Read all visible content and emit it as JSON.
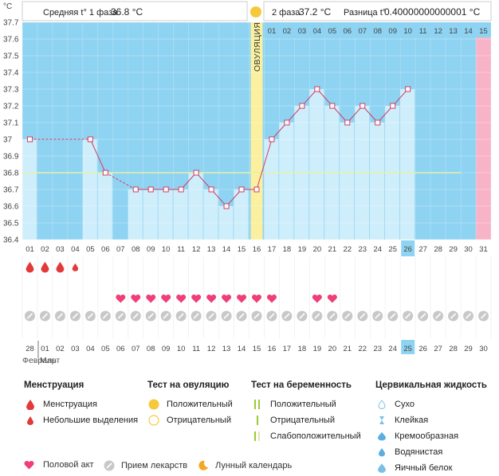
{
  "header": {
    "unit": "°C",
    "phase1_label": "Средняя t° 1 фаза",
    "phase1_value": "36.8 °C",
    "phase2_label": "2 фаза",
    "phase2_value": "37.2 °C",
    "diff_label": "Разница t°",
    "diff_value": "0.40000000000001 °C"
  },
  "chart_data": {
    "type": "line",
    "ylim": [
      36.4,
      37.7
    ],
    "yticks": [
      "36.4",
      "36.5",
      "36.6",
      "36.7",
      "36.8",
      "36.9",
      "37",
      "37.1",
      "37.2",
      "37.3",
      "37.4",
      "37.5",
      "37.6",
      "37.7"
    ],
    "cycle_days": [
      "01",
      "02",
      "03",
      "04",
      "05",
      "06",
      "07",
      "08",
      "09",
      "10",
      "11",
      "12",
      "13",
      "14",
      "15",
      "16",
      "17",
      "18",
      "19",
      "20",
      "21",
      "22",
      "23",
      "24",
      "25",
      "26",
      "27",
      "28",
      "29",
      "30",
      "31"
    ],
    "temperatures": [
      37.0,
      null,
      null,
      null,
      37.0,
      36.8,
      null,
      36.7,
      36.7,
      36.7,
      36.7,
      36.8,
      36.7,
      36.6,
      36.7,
      36.7,
      37.0,
      37.1,
      37.2,
      37.3,
      37.2,
      37.1,
      37.2,
      37.1,
      37.2,
      37.3,
      null,
      null,
      null,
      null,
      null
    ],
    "coverline": 36.8,
    "ovulation_day": "16",
    "ovulation_label": "ОВУЛЯЦИЯ",
    "phase2_day_labels": [
      "01",
      "02",
      "03",
      "04",
      "05",
      "06",
      "07",
      "08",
      "09",
      "10",
      "11",
      "12",
      "13",
      "14",
      "15"
    ],
    "current_day": "26",
    "menstruation_days": [
      "01",
      "02",
      "03",
      "04"
    ],
    "intercourse_days": [
      "07",
      "08",
      "09",
      "10",
      "11",
      "12",
      "13",
      "14",
      "15",
      "16",
      "17",
      "20",
      "21"
    ],
    "medication_days": [
      "01",
      "02",
      "03",
      "04",
      "05",
      "06",
      "07",
      "08",
      "09",
      "10",
      "11",
      "12",
      "13",
      "14",
      "15",
      "16",
      "17",
      "18",
      "19",
      "20",
      "21",
      "22",
      "23",
      "24",
      "25",
      "26",
      "27",
      "28",
      "29",
      "30",
      "31"
    ],
    "dates": [
      "28",
      "01",
      "02",
      "03",
      "04",
      "05",
      "06",
      "07",
      "08",
      "09",
      "10",
      "11",
      "12",
      "13",
      "14",
      "15",
      "16",
      "17",
      "18",
      "19",
      "20",
      "21",
      "22",
      "23",
      "24",
      "25",
      "26",
      "27",
      "28",
      "29",
      "30"
    ],
    "red_dates": [
      0,
      6,
      7,
      13,
      14,
      20,
      21,
      27,
      28
    ],
    "month_labels": [
      "Февраль",
      "Март"
    ],
    "colors": {
      "sky": "#8ed3f2",
      "bar": "#cfeefb",
      "line": "#d23c64",
      "ovulation": "#faf0a0",
      "pink": "#f7b4c8",
      "current": "#8ed3f2",
      "heart": "#ee3f77",
      "drop": "#e23a3a",
      "pill": "#c8c8c8"
    }
  },
  "legend": {
    "menstruation": {
      "title": "Менструация",
      "items": [
        "Менструация",
        "Небольшие выделения"
      ]
    },
    "ovulation_test": {
      "title": "Тест на овуляцию",
      "items": [
        "Положительный",
        "Отрицательный"
      ]
    },
    "pregnancy_test": {
      "title": "Тест на беременность",
      "items": [
        "Положительный",
        "Отрицательный",
        "Слабоположительный"
      ]
    },
    "cervical": {
      "title": "Цервикальная жидкость",
      "items": [
        "Сухо",
        "Клейкая",
        "Кремообразная",
        "Водянистая",
        "Яичный белок"
      ]
    },
    "bottom": [
      "Половой акт",
      "Прием лекарств",
      "Лунный календарь"
    ]
  }
}
